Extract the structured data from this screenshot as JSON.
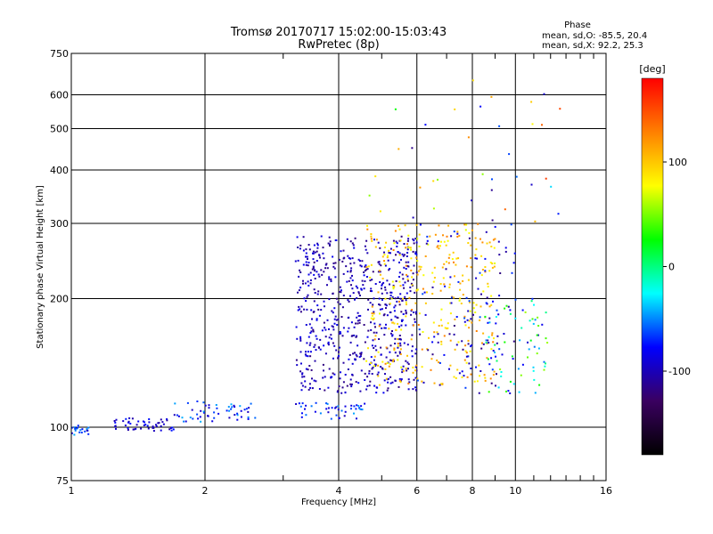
{
  "chart_data": {
    "type": "scatter",
    "title": "Tromsø 20170717 15:02:00-15:03:43",
    "subtitle": "RwPretec (8p)",
    "xlabel": "Frequency [MHz]",
    "ylabel": "Stationary phase Virtual Height [km]",
    "x_scale": "log",
    "y_scale": "log",
    "xlim": [
      1,
      16
    ],
    "ylim": [
      75,
      750
    ],
    "x_ticks": [
      1,
      2,
      4,
      6,
      8,
      10,
      16
    ],
    "x_tick_labels": [
      "1",
      "2",
      "4",
      "6",
      "8",
      "10",
      "16"
    ],
    "x_minor_ticks": [
      3,
      5,
      7,
      9,
      11,
      12,
      13,
      14,
      15
    ],
    "y_ticks": [
      75,
      100,
      200,
      300,
      400,
      500,
      600,
      750
    ],
    "y_tick_labels": [
      "75",
      "100",
      "200",
      "300",
      "400",
      "500",
      "600",
      "750"
    ],
    "grid": true,
    "phase_stats": {
      "heading": "Phase",
      "line_o": "mean, sd,O: -85.5, 20.4",
      "line_x": "mean, sd,X:  92.2, 25.3"
    },
    "colorbar": {
      "unit": "[deg]",
      "range": [
        -180,
        180
      ],
      "tick_labels": [
        "100",
        "0",
        "-100"
      ],
      "tick_values": [
        100,
        0,
        -100
      ],
      "colors": [
        "#000000",
        "#3a0060",
        "#0000ff",
        "#00ffff",
        "#00ff00",
        "#ffff00",
        "#ff8000",
        "#ff0000"
      ]
    },
    "clusters": [
      {
        "name": "",
        "x_range": [
          1.0,
          1.1
        ],
        "y_range": [
          96,
          101
        ],
        "phase_range": [
          -100,
          -40
        ],
        "count": 20
      },
      {
        "name": "",
        "x_range": [
          1.25,
          1.7
        ],
        "y_range": [
          98,
          105
        ],
        "phase_range": [
          -110,
          -70
        ],
        "count": 50
      },
      {
        "name": "",
        "x_range": [
          1.7,
          2.6
        ],
        "y_range": [
          103,
          115
        ],
        "phase_range": [
          -100,
          -40
        ],
        "count": 55
      },
      {
        "name": "",
        "x_range": [
          3.2,
          4.6
        ],
        "y_range": [
          104,
          114
        ],
        "phase_range": [
          -100,
          -40
        ],
        "count": 45
      },
      {
        "name": "",
        "x_range": [
          3.2,
          6.0
        ],
        "y_range": [
          120,
          280
        ],
        "phase_range": [
          -120,
          -80
        ],
        "count": 650
      },
      {
        "name": "",
        "x_range": [
          4.6,
          9.0
        ],
        "y_range": [
          125,
          300
        ],
        "phase_range": [
          70,
          130
        ],
        "count": 320
      },
      {
        "name": "",
        "x_range": [
          6.0,
          10.0
        ],
        "y_range": [
          120,
          310
        ],
        "phase_range": [
          -120,
          -60
        ],
        "count": 110
      },
      {
        "name": "",
        "x_range": [
          8.5,
          12.0
        ],
        "y_range": [
          120,
          200
        ],
        "phase_range": [
          -100,
          60
        ],
        "count": 70
      },
      {
        "name": "",
        "x_range": [
          4.5,
          13.0
        ],
        "y_range": [
          300,
          650
        ],
        "phase_range": [
          -120,
          160
        ],
        "count": 35
      }
    ]
  }
}
